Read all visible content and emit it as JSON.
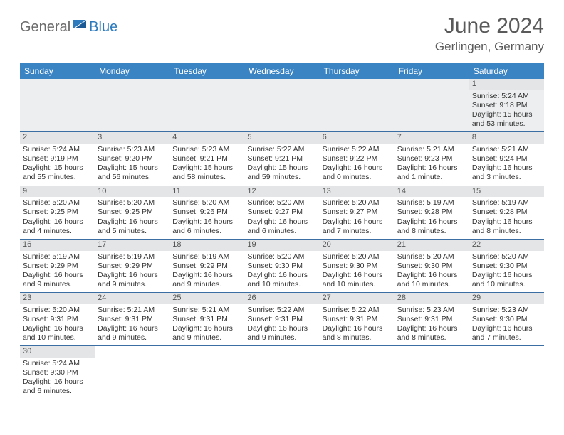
{
  "logo": {
    "text1": "General",
    "text2": "Blue"
  },
  "title": "June 2024",
  "subtitle": "Gerlingen, Germany",
  "header_bg": "#3b84c4",
  "header_fg": "#ffffff",
  "daynum_bg": "#e3e5e6",
  "row_border": "#3b6fa3",
  "days": [
    "Sunday",
    "Monday",
    "Tuesday",
    "Wednesday",
    "Thursday",
    "Friday",
    "Saturday"
  ],
  "weeks": [
    [
      null,
      null,
      null,
      null,
      null,
      null,
      {
        "n": "1",
        "sr": "Sunrise: 5:24 AM",
        "ss": "Sunset: 9:18 PM",
        "dl": "Daylight: 15 hours and 53 minutes."
      }
    ],
    [
      {
        "n": "2",
        "sr": "Sunrise: 5:24 AM",
        "ss": "Sunset: 9:19 PM",
        "dl": "Daylight: 15 hours and 55 minutes."
      },
      {
        "n": "3",
        "sr": "Sunrise: 5:23 AM",
        "ss": "Sunset: 9:20 PM",
        "dl": "Daylight: 15 hours and 56 minutes."
      },
      {
        "n": "4",
        "sr": "Sunrise: 5:23 AM",
        "ss": "Sunset: 9:21 PM",
        "dl": "Daylight: 15 hours and 58 minutes."
      },
      {
        "n": "5",
        "sr": "Sunrise: 5:22 AM",
        "ss": "Sunset: 9:21 PM",
        "dl": "Daylight: 15 hours and 59 minutes."
      },
      {
        "n": "6",
        "sr": "Sunrise: 5:22 AM",
        "ss": "Sunset: 9:22 PM",
        "dl": "Daylight: 16 hours and 0 minutes."
      },
      {
        "n": "7",
        "sr": "Sunrise: 5:21 AM",
        "ss": "Sunset: 9:23 PM",
        "dl": "Daylight: 16 hours and 1 minute."
      },
      {
        "n": "8",
        "sr": "Sunrise: 5:21 AM",
        "ss": "Sunset: 9:24 PM",
        "dl": "Daylight: 16 hours and 3 minutes."
      }
    ],
    [
      {
        "n": "9",
        "sr": "Sunrise: 5:20 AM",
        "ss": "Sunset: 9:25 PM",
        "dl": "Daylight: 16 hours and 4 minutes."
      },
      {
        "n": "10",
        "sr": "Sunrise: 5:20 AM",
        "ss": "Sunset: 9:25 PM",
        "dl": "Daylight: 16 hours and 5 minutes."
      },
      {
        "n": "11",
        "sr": "Sunrise: 5:20 AM",
        "ss": "Sunset: 9:26 PM",
        "dl": "Daylight: 16 hours and 6 minutes."
      },
      {
        "n": "12",
        "sr": "Sunrise: 5:20 AM",
        "ss": "Sunset: 9:27 PM",
        "dl": "Daylight: 16 hours and 6 minutes."
      },
      {
        "n": "13",
        "sr": "Sunrise: 5:20 AM",
        "ss": "Sunset: 9:27 PM",
        "dl": "Daylight: 16 hours and 7 minutes."
      },
      {
        "n": "14",
        "sr": "Sunrise: 5:19 AM",
        "ss": "Sunset: 9:28 PM",
        "dl": "Daylight: 16 hours and 8 minutes."
      },
      {
        "n": "15",
        "sr": "Sunrise: 5:19 AM",
        "ss": "Sunset: 9:28 PM",
        "dl": "Daylight: 16 hours and 8 minutes."
      }
    ],
    [
      {
        "n": "16",
        "sr": "Sunrise: 5:19 AM",
        "ss": "Sunset: 9:29 PM",
        "dl": "Daylight: 16 hours and 9 minutes."
      },
      {
        "n": "17",
        "sr": "Sunrise: 5:19 AM",
        "ss": "Sunset: 9:29 PM",
        "dl": "Daylight: 16 hours and 9 minutes."
      },
      {
        "n": "18",
        "sr": "Sunrise: 5:19 AM",
        "ss": "Sunset: 9:29 PM",
        "dl": "Daylight: 16 hours and 9 minutes."
      },
      {
        "n": "19",
        "sr": "Sunrise: 5:20 AM",
        "ss": "Sunset: 9:30 PM",
        "dl": "Daylight: 16 hours and 10 minutes."
      },
      {
        "n": "20",
        "sr": "Sunrise: 5:20 AM",
        "ss": "Sunset: 9:30 PM",
        "dl": "Daylight: 16 hours and 10 minutes."
      },
      {
        "n": "21",
        "sr": "Sunrise: 5:20 AM",
        "ss": "Sunset: 9:30 PM",
        "dl": "Daylight: 16 hours and 10 minutes."
      },
      {
        "n": "22",
        "sr": "Sunrise: 5:20 AM",
        "ss": "Sunset: 9:30 PM",
        "dl": "Daylight: 16 hours and 10 minutes."
      }
    ],
    [
      {
        "n": "23",
        "sr": "Sunrise: 5:20 AM",
        "ss": "Sunset: 9:31 PM",
        "dl": "Daylight: 16 hours and 10 minutes."
      },
      {
        "n": "24",
        "sr": "Sunrise: 5:21 AM",
        "ss": "Sunset: 9:31 PM",
        "dl": "Daylight: 16 hours and 9 minutes."
      },
      {
        "n": "25",
        "sr": "Sunrise: 5:21 AM",
        "ss": "Sunset: 9:31 PM",
        "dl": "Daylight: 16 hours and 9 minutes."
      },
      {
        "n": "26",
        "sr": "Sunrise: 5:22 AM",
        "ss": "Sunset: 9:31 PM",
        "dl": "Daylight: 16 hours and 9 minutes."
      },
      {
        "n": "27",
        "sr": "Sunrise: 5:22 AM",
        "ss": "Sunset: 9:31 PM",
        "dl": "Daylight: 16 hours and 8 minutes."
      },
      {
        "n": "28",
        "sr": "Sunrise: 5:23 AM",
        "ss": "Sunset: 9:31 PM",
        "dl": "Daylight: 16 hours and 8 minutes."
      },
      {
        "n": "29",
        "sr": "Sunrise: 5:23 AM",
        "ss": "Sunset: 9:30 PM",
        "dl": "Daylight: 16 hours and 7 minutes."
      }
    ],
    [
      {
        "n": "30",
        "sr": "Sunrise: 5:24 AM",
        "ss": "Sunset: 9:30 PM",
        "dl": "Daylight: 16 hours and 6 minutes."
      },
      null,
      null,
      null,
      null,
      null,
      null
    ]
  ]
}
